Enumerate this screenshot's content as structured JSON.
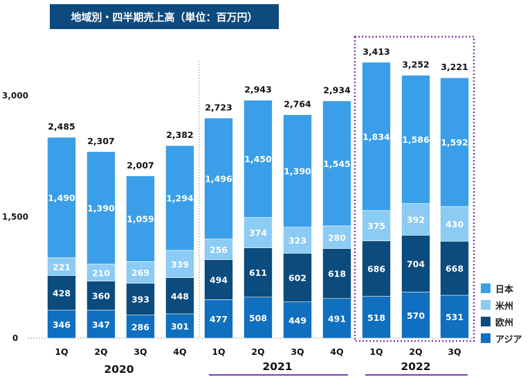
{
  "title": "地域別・四半期売上高（単位：百万円）",
  "colors": {
    "japan": "#3a9fe8",
    "americas": "#8ccbf4",
    "europe": "#0b4b7d",
    "asia": "#106fbe",
    "title_bg": "#0e4a7d",
    "highlight_border": "#7b3fa6"
  },
  "chart_data": {
    "type": "bar",
    "stacked": true,
    "title": "地域別・四半期売上高（単位：百万円）",
    "categories": [
      "1Q",
      "2Q",
      "3Q",
      "4Q",
      "1Q",
      "2Q",
      "3Q",
      "4Q",
      "1Q",
      "2Q",
      "3Q"
    ],
    "years": [
      {
        "label": "2020",
        "start": 0,
        "end": 3
      },
      {
        "label": "2021",
        "start": 4,
        "end": 7
      },
      {
        "label": "2022",
        "start": 8,
        "end": 10
      }
    ],
    "series": [
      {
        "name": "アジア",
        "key": "asia",
        "values": [
          346,
          347,
          286,
          301,
          477,
          508,
          449,
          491,
          518,
          570,
          531
        ]
      },
      {
        "name": "欧州",
        "key": "europe",
        "values": [
          428,
          360,
          393,
          448,
          494,
          611,
          602,
          618,
          686,
          704,
          668
        ]
      },
      {
        "name": "米州",
        "key": "americas",
        "values": [
          221,
          210,
          269,
          339,
          256,
          374,
          323,
          280,
          375,
          392,
          430
        ]
      },
      {
        "name": "日本",
        "key": "japan",
        "values": [
          1490,
          1390,
          1059,
          1294,
          1496,
          1450,
          1390,
          1545,
          1834,
          1586,
          1592
        ]
      }
    ],
    "totals": [
      "2,485",
      "2,307",
      "2,007",
      "2,382",
      "2,723",
      "2,943",
      "2,764",
      "2,934",
      "3,413",
      "3,252",
      "3,221"
    ],
    "yticks": [
      "0",
      "1,500",
      "3,000"
    ],
    "ytick_values": [
      0,
      1500,
      3000
    ],
    "ylim": [
      0,
      3550
    ],
    "legend_position": "bottom-right",
    "legend_order": [
      "日本",
      "米州",
      "欧州",
      "アジア"
    ]
  }
}
